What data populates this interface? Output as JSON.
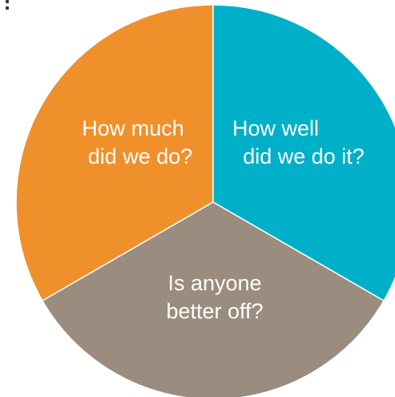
{
  "diagram": {
    "segments": [
      {
        "id": "how-much",
        "lines": [
          "How much",
          "did we do?"
        ],
        "color": "#F0902A",
        "start_deg": 240,
        "end_deg": 360
      },
      {
        "id": "how-well",
        "lines": [
          "How well",
          "did we do it?"
        ],
        "color": "#00B0C8",
        "start_deg": 0,
        "end_deg": 120
      },
      {
        "id": "better-off",
        "lines": [
          "Is anyone",
          "better off?"
        ],
        "color": "#9A8C7E",
        "start_deg": 120,
        "end_deg": 240
      }
    ]
  }
}
